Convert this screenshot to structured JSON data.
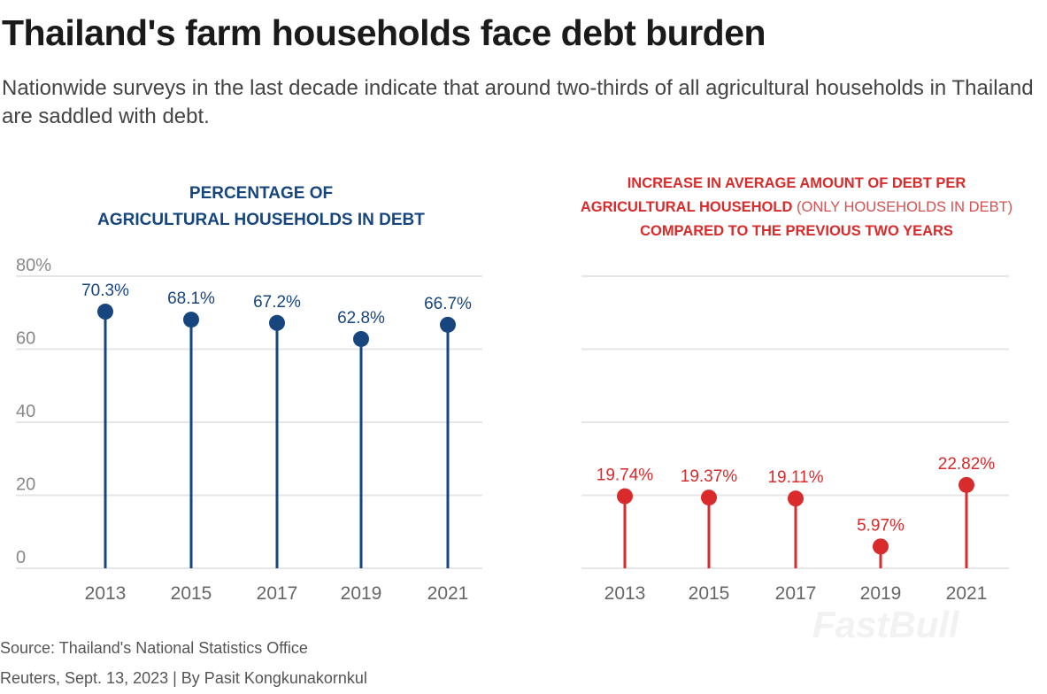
{
  "title": "Thailand's farm households face debt burden",
  "subtitle": "Nationwide surveys in the last decade indicate that around two-thirds of all agricultural households in Thailand are saddled with debt.",
  "source": "Source: Thailand's National Statistics Office",
  "credit": "Reuters, Sept. 13, 2023 | By Pasit Kongkunakornkul",
  "watermark": "FastBull",
  "chart_data": [
    {
      "type": "lollipop",
      "title_line1": "PERCENTAGE OF",
      "title_line2": "AGRICULTURAL HOUSEHOLDS IN DEBT",
      "categories": [
        "2013",
        "2015",
        "2017",
        "2019",
        "2021"
      ],
      "values": [
        70.3,
        68.1,
        67.2,
        62.8,
        66.7
      ],
      "labels": [
        "70.3%",
        "68.1%",
        "67.2%",
        "62.8%",
        "66.7%"
      ],
      "yticks": [
        "0",
        "20",
        "40",
        "60",
        "80%"
      ],
      "ylim": [
        0,
        80
      ],
      "grid": true,
      "color": "#17467f"
    },
    {
      "type": "lollipop",
      "title_line1": "INCREASE IN AVERAGE AMOUNT OF DEBT PER",
      "title_line2_bold": "AGRICULTURAL HOUSEHOLD",
      "title_line2_light": "(ONLY HOUSEHOLDS IN DEBT)",
      "title_line3": "COMPARED TO THE PREVIOUS TWO YEARS",
      "categories": [
        "2013",
        "2015",
        "2017",
        "2019",
        "2021"
      ],
      "values": [
        19.74,
        19.37,
        19.11,
        5.97,
        22.82
      ],
      "labels": [
        "19.74%",
        "19.37%",
        "19.11%",
        "5.97%",
        "22.82%"
      ],
      "ylim": [
        0,
        80
      ],
      "grid": true,
      "color": "#d92b2b"
    }
  ]
}
